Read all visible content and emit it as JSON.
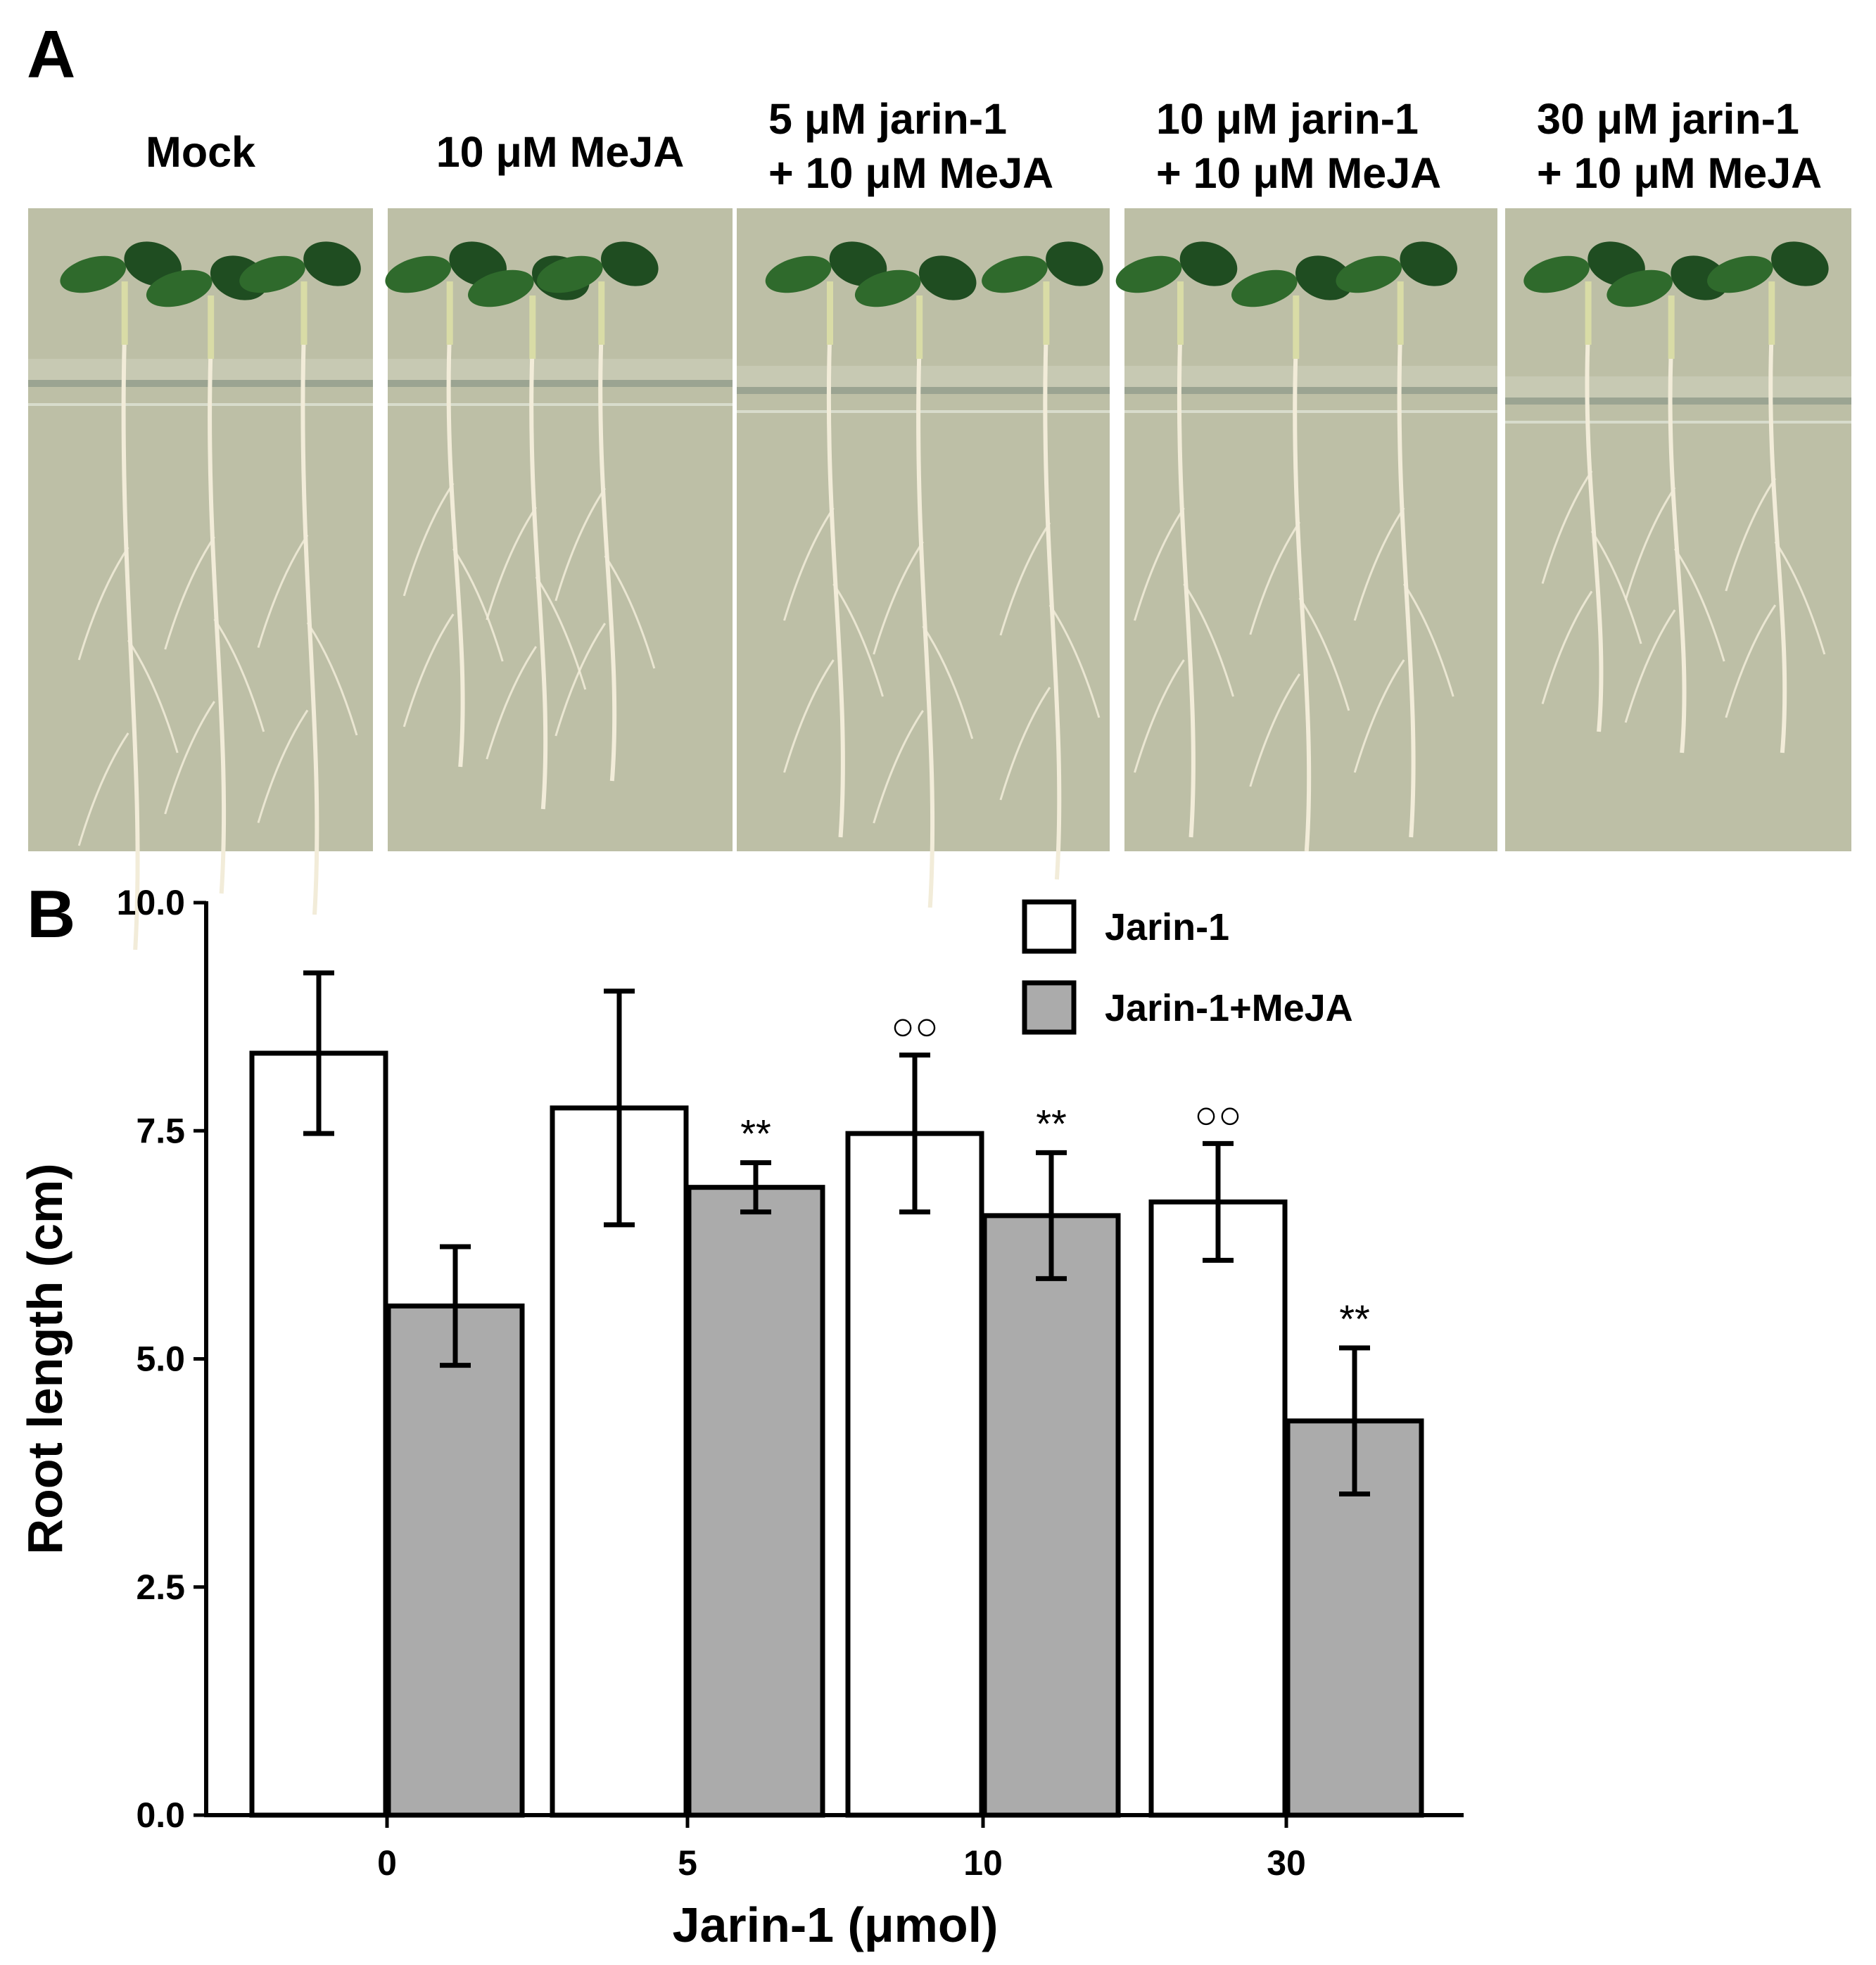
{
  "panel_a": {
    "letter": "A",
    "conditions": [
      {
        "lines": [
          "Mock"
        ]
      },
      {
        "lines": [
          "10 μM MeJA"
        ]
      },
      {
        "lines": [
          "5 μM jarin-1",
          "+ 10 μM MeJA"
        ]
      },
      {
        "lines": [
          "10 μM jarin-1",
          "+ 10 μM MeJA"
        ]
      },
      {
        "lines": [
          "30 μM jarin-1",
          "+ 10 μM MeJA"
        ]
      }
    ],
    "photo_colors": {
      "background": "#bdbfa6",
      "leaf": "#2f6a2c",
      "leaf_dark": "#1f4d21",
      "root": "#f2ecd9",
      "hypocotyl": "#d9dca6"
    }
  },
  "panel_b": {
    "letter": "B"
  },
  "chart_data": {
    "type": "bar",
    "categories": [
      "0",
      "5",
      "10",
      "30"
    ],
    "series": [
      {
        "name": "Jarin-1",
        "color": "#ffffff",
        "values": [
          8.35,
          7.75,
          7.47,
          6.72
        ],
        "errors": [
          0.88,
          1.28,
          0.86,
          0.64
        ],
        "annotations": [
          "",
          "",
          "○○",
          "○○"
        ]
      },
      {
        "name": "Jarin-1+MeJA",
        "color": "#ababab",
        "values": [
          5.58,
          6.88,
          6.57,
          4.32
        ],
        "errors": [
          0.65,
          0.27,
          0.69,
          0.8
        ],
        "annotations": [
          "",
          "**",
          "**",
          "**"
        ]
      }
    ],
    "xlabel": "Jarin-1 (μmol)",
    "ylabel": "Root length (cm)",
    "ylim": [
      0,
      10
    ],
    "yticks": [
      "0.0",
      "2.5",
      "5.0",
      "7.5",
      "10.0"
    ],
    "grid": false,
    "legend_position": "top-right"
  }
}
